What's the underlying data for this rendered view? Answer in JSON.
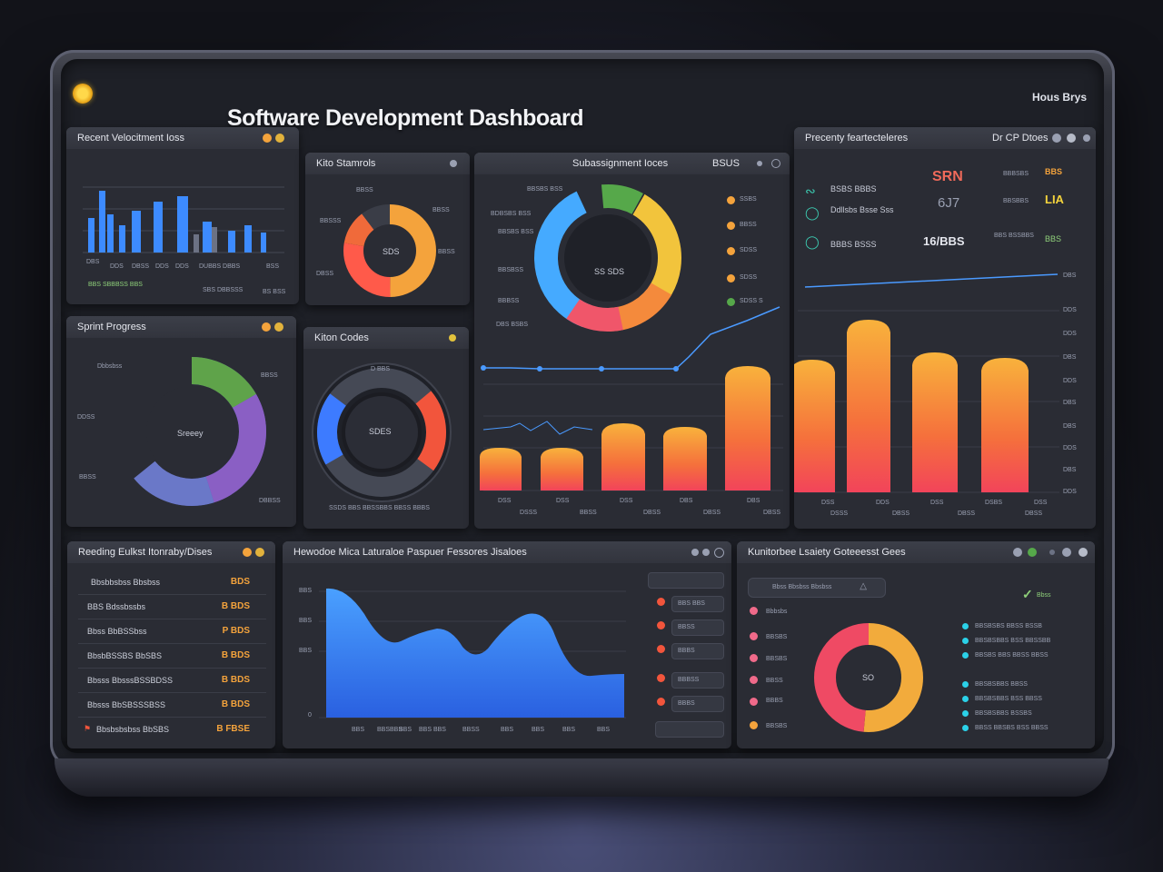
{
  "header": {
    "title": "Software Development Dashboard",
    "user": "Hous Brys"
  },
  "colors": {
    "orange": "#f4a33c",
    "blue": "#3d8bff",
    "panel": "#2a2c34"
  },
  "panels": {
    "recent_velocity": {
      "title": "Recent Velocitment Ioss",
      "xlabels": [
        "DBS",
        "DDS",
        "DBSS",
        "DDS",
        "DDS",
        "DUBBS DBBS",
        "BSS"
      ],
      "footer": [
        "BBS SBBBSS BBS",
        "SBS DBBSSS",
        "BS BSS"
      ]
    },
    "kito_stats": {
      "title": "Kito Stamrols",
      "center": "SDS",
      "labels": [
        "BBSS",
        "BBSSS",
        "BBSS",
        "BBSS",
        "DBSS"
      ]
    },
    "sprint_progress": {
      "title": "Sprint Progress",
      "center": "Sreeey",
      "labels": [
        "Dbbsbss",
        "BBSS",
        "DDSS",
        "BBSS",
        "DBBSS"
      ]
    },
    "kiton_codes": {
      "title": "Kiton Codes",
      "center": "SDES",
      "top": "D BBS",
      "footer": "SSDS BBS BBSSBBS BBSS BBBS"
    },
    "subassignment": {
      "title": "Subassignment Ioces",
      "status": "BSUS",
      "center": "SS SDS",
      "left_labels": [
        "BBSBS BSS",
        "BDBSBS BSS",
        "BBSBS BSS",
        "BBSBSS",
        "BBBSS",
        "DBS BSBS"
      ],
      "right_items": [
        "SSBS",
        "BBSS",
        "SDSS",
        "SDSS",
        "SDSS S"
      ],
      "xlabels": [
        "DSS",
        "BBS",
        "DSS",
        "DDSS",
        "DSS",
        "BBSS",
        "DBS",
        "DBSS",
        "DBS",
        "BSS",
        "DSS",
        "BBS",
        "DDS",
        "BBS",
        "DSS",
        "BBSS",
        "DSBS",
        "DSBS",
        "DSS"
      ],
      "sublabels": [
        "DSSS",
        "BBSS",
        "DBSS",
        "DBSS",
        "DBSS",
        "DSSS",
        "DBSS",
        "DBSS",
        "DBSS"
      ],
      "ylabels": [
        "DBS",
        "DDS",
        "DDS",
        "DBS",
        "DDS",
        "DBS",
        "DBS",
        "DDS",
        "DBS",
        "DDS",
        "DDS"
      ]
    },
    "recent_features": {
      "title": "Precenty feartecteleres",
      "icons": "Dr CP Dtoes",
      "rows": [
        {
          "label": "BSBS BBBS",
          "value": "SRN"
        },
        {
          "label": "Ddllsbs Bsse Sss",
          "value": "6J7"
        },
        {
          "label": "BBBS BSSS",
          "value": "16/BBS"
        }
      ],
      "side": [
        "BBBSBS",
        "BBSBBS",
        "BBS BSSBBS"
      ],
      "side_values": [
        "BBS",
        "LIA",
        "BBS"
      ]
    },
    "feature_table": {
      "title": "Reeding Eulkst Itonraby/Dises",
      "rows": [
        {
          "label": "Bbsbbsbss Bbsbss",
          "value": "BDS"
        },
        {
          "label": "BBS Bdssbssbs",
          "value": "B BDS"
        },
        {
          "label": "Bbss BbBSSbss",
          "value": "P BDS"
        },
        {
          "label": "BbsbBSSBS BbSBS",
          "value": "B BDS"
        },
        {
          "label": "Bbsss BbsssBSSBDSS",
          "value": "B BDS"
        },
        {
          "label": "Bbsss BbSBSSSBSS",
          "value": "B BDS"
        },
        {
          "label": "Bbsbsbsbss BbSBS",
          "value": "B FBSE"
        }
      ]
    },
    "features_area": {
      "title": "Hewodoe Mica Laturaloe Paspuer Fessores Jisaloes",
      "ylabels": [
        "BBS",
        "BBS",
        "BBS",
        "0"
      ],
      "xlabels": [
        "BBS",
        "BBSBBS",
        "BBS",
        "BBS BBS",
        "BBSS",
        "BBS",
        "BBS",
        "BBS",
        "BBS"
      ],
      "items": [
        "BBS BBS",
        "BBSS",
        "BBBS",
        "BBBSS",
        "BBBS"
      ]
    },
    "workflow": {
      "title": "Kunitorbee Lsaiety Goteeesst Gees",
      "search": "Bbss Bbsbss Bbsbss",
      "brand": "Bbss",
      "center": "SO",
      "left_items": [
        "Bbbsbs",
        "BBSBS",
        "BBSBS",
        "BBSS",
        "BBBS",
        "BBSBS"
      ],
      "legend": [
        "BBSBSBS BBSS BSSB",
        "BBSBSBBS BSS BBSSBB",
        "BBSBS BBS BBSS BBSS",
        "BBSBSBBS BBSS",
        "BBSBSBBS BSS BBSS",
        "BBSBSBBS BSSBS",
        "BBSS BBSBS BSS BBSS"
      ]
    }
  }
}
